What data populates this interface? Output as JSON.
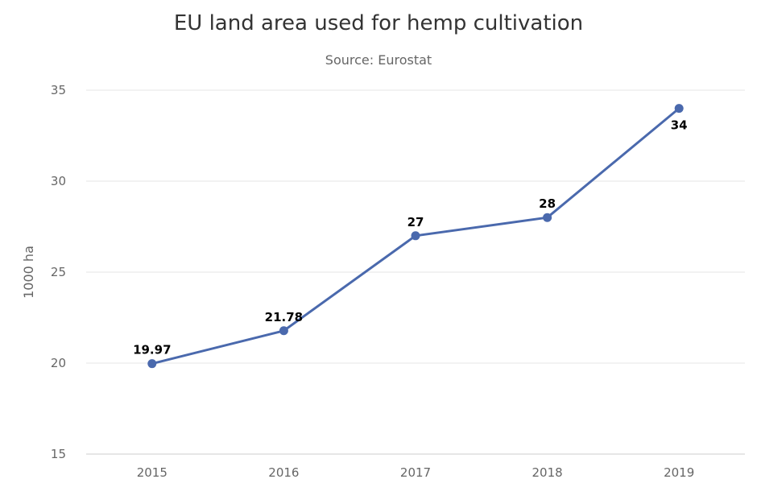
{
  "chart_data": {
    "type": "line",
    "title": "EU land area used for hemp cultivation",
    "subtitle": "Source: Eurostat",
    "xlabel": "",
    "ylabel": "1000 ha",
    "categories": [
      "2015",
      "2016",
      "2017",
      "2018",
      "2019"
    ],
    "series": [
      {
        "values": [
          19.97,
          21.78,
          27,
          28,
          34
        ],
        "data_labels": [
          "19.97",
          "21.78",
          "27",
          "28",
          "34"
        ],
        "color": "#4a69ad"
      }
    ],
    "ylim": [
      15,
      35
    ],
    "yticks": [
      15,
      20,
      25,
      30,
      35
    ],
    "grid": true,
    "legend": "none"
  }
}
